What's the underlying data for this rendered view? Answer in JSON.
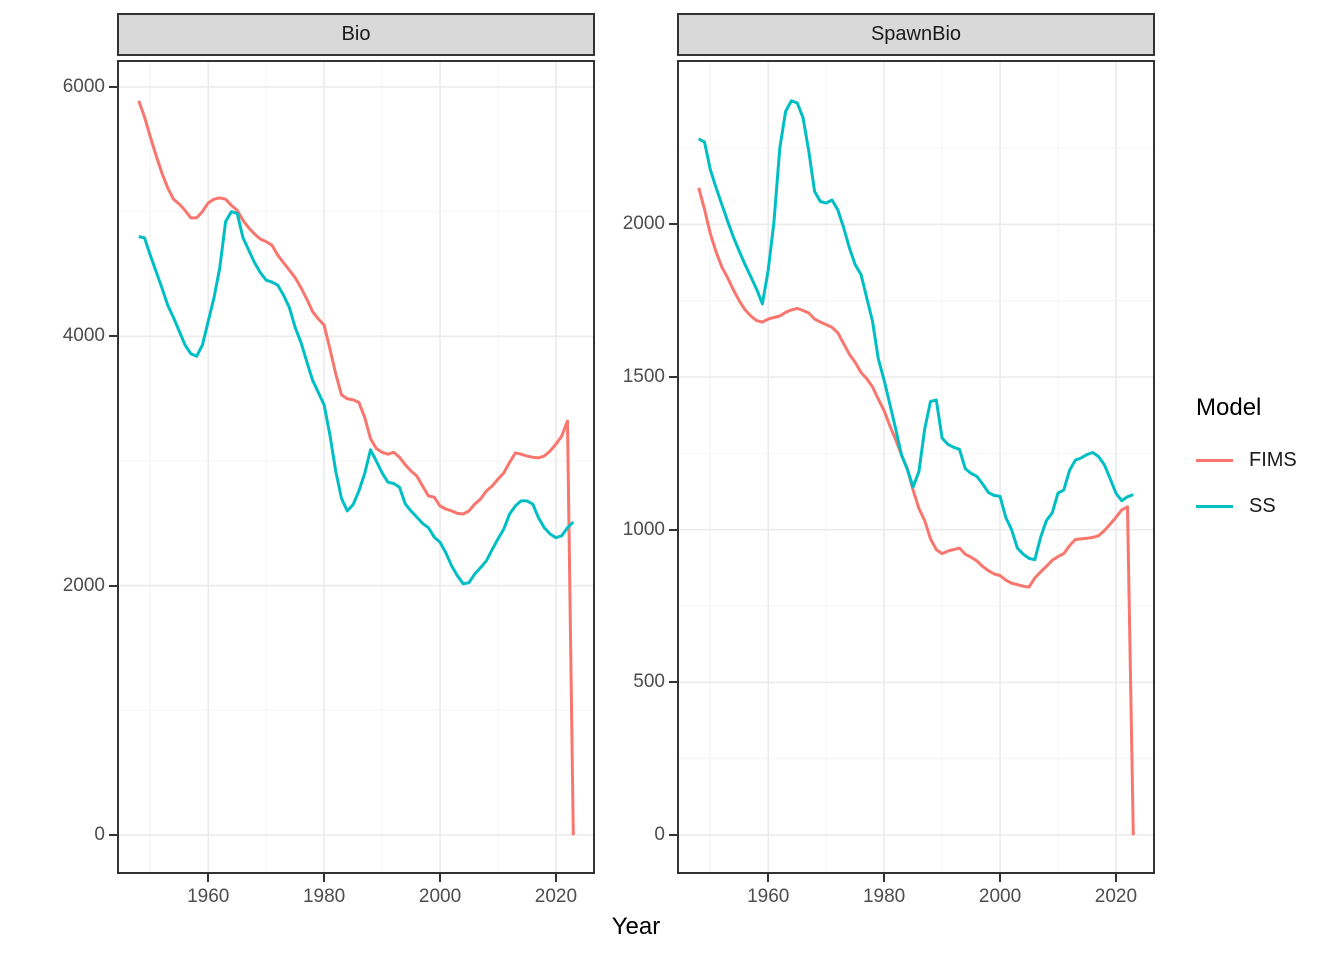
{
  "chart_data": {
    "type": "line",
    "faceted": true,
    "xlabel": "Year",
    "ylabel": "",
    "x": [
      1948,
      1949,
      1950,
      1951,
      1952,
      1953,
      1954,
      1955,
      1956,
      1957,
      1958,
      1959,
      1960,
      1961,
      1962,
      1963,
      1964,
      1965,
      1966,
      1967,
      1968,
      1969,
      1970,
      1971,
      1972,
      1973,
      1974,
      1975,
      1976,
      1977,
      1978,
      1979,
      1980,
      1981,
      1982,
      1983,
      1984,
      1985,
      1986,
      1987,
      1988,
      1989,
      1990,
      1991,
      1992,
      1993,
      1994,
      1995,
      1996,
      1997,
      1998,
      1999,
      2000,
      2001,
      2002,
      2003,
      2004,
      2005,
      2006,
      2007,
      2008,
      2009,
      2010,
      2011,
      2012,
      2013,
      2014,
      2015,
      2016,
      2017,
      2018,
      2019,
      2020,
      2021,
      2022,
      2023
    ],
    "xlim": [
      1944.6,
      2026.4
    ],
    "xticks": [
      1960,
      1980,
      2000,
      2020
    ],
    "xticks_minor": [
      1950,
      1970,
      1990,
      2010
    ],
    "grid": true,
    "legend": {
      "title": "Model",
      "position": "right",
      "entries": [
        {
          "label": "FIMS",
          "color": "#F8766D"
        },
        {
          "label": "SS",
          "color": "#00BFC4"
        }
      ]
    },
    "panels": [
      {
        "name": "Bio",
        "ylim": [
          -296,
          6200
        ],
        "yticks": [
          0,
          2000,
          4000,
          6000
        ],
        "yticks_minor": [
          1000,
          3000,
          5000
        ],
        "series": [
          {
            "name": "FIMS",
            "color": "#F8766D",
            "values": [
              5890,
              5760,
              5600,
              5450,
              5310,
              5190,
              5100,
              5060,
              5010,
              4950,
              4950,
              5000,
              5070,
              5100,
              5110,
              5100,
              5050,
              5010,
              4930,
              4870,
              4820,
              4780,
              4760,
              4730,
              4650,
              4590,
              4530,
              4470,
              4390,
              4300,
              4200,
              4140,
              4090,
              3900,
              3700,
              3530,
              3500,
              3490,
              3470,
              3350,
              3180,
              3100,
              3070,
              3055,
              3070,
              3030,
              2970,
              2920,
              2880,
              2800,
              2720,
              2710,
              2640,
              2615,
              2600,
              2580,
              2575,
              2600,
              2655,
              2695,
              2760,
              2800,
              2855,
              2905,
              2990,
              3065,
              3055,
              3040,
              3030,
              3025,
              3040,
              3080,
              3135,
              3200,
              3320,
              0
            ]
          },
          {
            "name": "SS",
            "color": "#00BFC4",
            "values": [
              4800,
              4790,
              4650,
              4520,
              4390,
              4250,
              4150,
              4040,
              3930,
              3860,
              3840,
              3930,
              4120,
              4310,
              4550,
              4920,
              5000,
              4985,
              4790,
              4690,
              4590,
              4510,
              4450,
              4435,
              4410,
              4330,
              4230,
              4070,
              3950,
              3800,
              3650,
              3550,
              3450,
              3210,
              2920,
              2700,
              2600,
              2650,
              2760,
              2900,
              3090,
              3000,
              2905,
              2830,
              2820,
              2790,
              2655,
              2600,
              2550,
              2500,
              2465,
              2390,
              2350,
              2265,
              2160,
              2080,
              2015,
              2025,
              2095,
              2145,
              2200,
              2290,
              2375,
              2455,
              2575,
              2640,
              2680,
              2680,
              2655,
              2545,
              2465,
              2415,
              2385,
              2400,
              2465,
              2510
            ]
          }
        ]
      },
      {
        "name": "SpawnBio",
        "ylim": [
          -121,
          2532
        ],
        "yticks": [
          0,
          500,
          1000,
          1500,
          2000
        ],
        "yticks_minor": [
          250,
          750,
          1250,
          1750,
          2250
        ],
        "series": [
          {
            "name": "FIMS",
            "color": "#F8766D",
            "values": [
              2120,
              2050,
              1970,
              1910,
              1860,
              1825,
              1785,
              1750,
              1720,
              1700,
              1685,
              1680,
              1690,
              1695,
              1700,
              1712,
              1720,
              1725,
              1718,
              1710,
              1690,
              1680,
              1672,
              1663,
              1645,
              1610,
              1575,
              1548,
              1515,
              1495,
              1468,
              1428,
              1390,
              1340,
              1295,
              1245,
              1200,
              1130,
              1070,
              1030,
              970,
              935,
              922,
              930,
              935,
              940,
              920,
              910,
              898,
              880,
              866,
              855,
              850,
              835,
              825,
              820,
              815,
              812,
              842,
              862,
              880,
              900,
              912,
              922,
              948,
              968,
              970,
              972,
              975,
              980,
              997,
              1018,
              1040,
              1065,
              1075,
              0
            ]
          },
          {
            "name": "SS",
            "color": "#00BFC4",
            "values": [
              2280,
              2270,
              2180,
              2120,
              2065,
              2010,
              1958,
              1912,
              1868,
              1828,
              1788,
              1740,
              1850,
              2010,
              2250,
              2370,
              2405,
              2398,
              2350,
              2240,
              2108,
              2075,
              2070,
              2080,
              2048,
              1990,
              1923,
              1868,
              1836,
              1760,
              1683,
              1560,
              1490,
              1411,
              1330,
              1245,
              1198,
              1140,
              1190,
              1330,
              1420,
              1425,
              1300,
              1280,
              1270,
              1263,
              1200,
              1185,
              1175,
              1150,
              1122,
              1112,
              1110,
              1040,
              1000,
              940,
              920,
              906,
              902,
              975,
              1030,
              1055,
              1120,
              1130,
              1195,
              1228,
              1235,
              1246,
              1253,
              1240,
              1213,
              1168,
              1120,
              1095,
              1108,
              1115
            ]
          }
        ]
      }
    ],
    "style": {
      "panel_border": "#333333",
      "strip_bg": "#D9D9D9",
      "grid_major": "#EBEBEB",
      "grid_minor": "#F4F4F4",
      "axis_text": "#4D4D4D",
      "line_width": 3
    }
  }
}
